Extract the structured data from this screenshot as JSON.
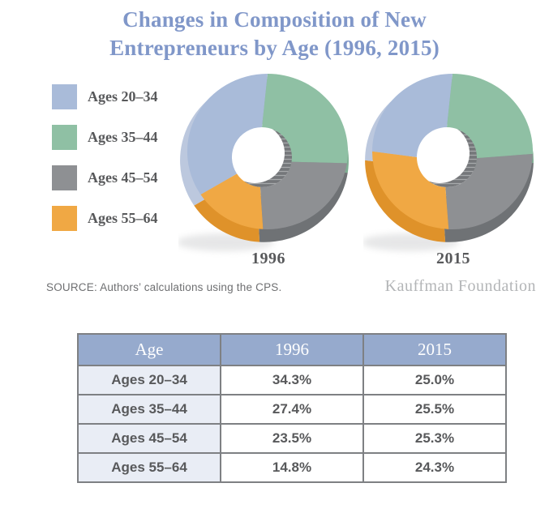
{
  "title": {
    "line1": "Changes in Composition of New",
    "line2": "Entrepreneurs by Age (1996, 2015)"
  },
  "legend": {
    "items": [
      {
        "label": "Ages 20–34",
        "color": "#a9bbd9"
      },
      {
        "label": "Ages 35–44",
        "color": "#8fc0a4"
      },
      {
        "label": "Ages 45–54",
        "color": "#8e9093"
      },
      {
        "label": "Ages 55–64",
        "color": "#f0a844"
      }
    ]
  },
  "chart_data": {
    "type": "pie",
    "variant": "3d-donut",
    "title": "Changes in Composition of New Entrepreneurs by Age (1996, 2015)",
    "categories": [
      "Ages 20–34",
      "Ages 35–44",
      "Ages 45–54",
      "Ages 55–64"
    ],
    "colors": [
      {
        "top": "#a9bbd9",
        "side": "#bcc8de"
      },
      {
        "top": "#8fc0a4",
        "side": "#7dae91"
      },
      {
        "top": "#8e9093",
        "side": "#6f7275"
      },
      {
        "top": "#f0a844",
        "side": "#df922a"
      }
    ],
    "draw_order": [
      1,
      2,
      3,
      0
    ],
    "start_angle_deg": 0,
    "legend_position": "left",
    "charts": [
      {
        "label": "1996",
        "values": [
          34.3,
          27.4,
          23.5,
          14.8
        ]
      },
      {
        "label": "2015",
        "values": [
          25.0,
          25.5,
          25.3,
          24.3
        ]
      }
    ]
  },
  "source": "SOURCE: Authors’ calculations using the CPS.",
  "branding": "Kauffman Foundation",
  "table": {
    "headers": [
      "Age",
      "1996",
      "2015"
    ],
    "rows": [
      [
        "Ages 20–34",
        "34.3%",
        "25.0%"
      ],
      [
        "Ages 35–44",
        "27.4%",
        "25.5%"
      ],
      [
        "Ages 45–54",
        "23.5%",
        "25.3%"
      ],
      [
        "Ages 55–64",
        "14.8%",
        "24.3%"
      ]
    ]
  },
  "colors": {
    "title_blue": "#8097c9",
    "text_gray": "#58595b",
    "table_header_bg": "#96aacd",
    "table_rowhead_bg": "#e9edf5",
    "table_border": "#7e8083",
    "hole_wall": "#75777a",
    "branding_gray": "#b3b5b7"
  }
}
